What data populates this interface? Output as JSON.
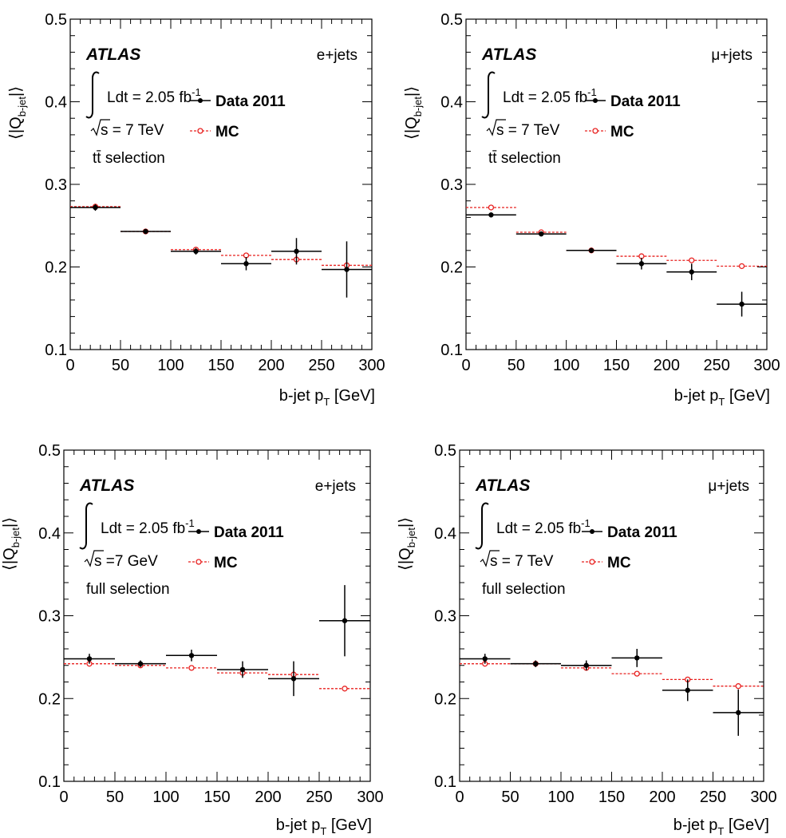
{
  "chart_data": [
    {
      "type": "scatter",
      "xlabel": "b-jet p",
      "xlabel_sub": "T",
      "xlabel_unit": " [GeV]",
      "ylabel": "⟨|Q",
      "ylabel_sub": "b-jet",
      "ylabel_end": "|⟩",
      "xlim": [
        0,
        300
      ],
      "ylim": [
        0.1,
        0.5
      ],
      "xticks": [
        "0",
        "50",
        "100",
        "150",
        "200",
        "250",
        "300"
      ],
      "yticks": [
        "0.1",
        "0.2",
        "0.3",
        "0.4",
        "0.5"
      ],
      "atlas": "ATLAS",
      "channel": "e+jets",
      "lumi": "Ldt = 2.05 fb",
      "lumi_sup": "-1",
      "energy": "s = 7 TeV",
      "selection": "tt̄ selection",
      "bins": [
        [
          0,
          50
        ],
        [
          50,
          100
        ],
        [
          100,
          150
        ],
        [
          150,
          200
        ],
        [
          200,
          250
        ],
        [
          250,
          300
        ]
      ],
      "series": [
        {
          "name": "Data 2011",
          "color": "#000000",
          "values": [
            0.272,
            0.243,
            0.219,
            0.204,
            0.219,
            0.197
          ],
          "errors": [
            0.004,
            0.003,
            0.004,
            0.008,
            0.016,
            0.034
          ]
        },
        {
          "name": "MC",
          "color": "#e8201f",
          "values": [
            0.273,
            0.243,
            0.221,
            0.214,
            0.209,
            0.202
          ]
        }
      ]
    },
    {
      "type": "scatter",
      "xlabel": "b-jet p",
      "xlabel_sub": "T",
      "xlabel_unit": " [GeV]",
      "ylabel": "⟨|Q",
      "ylabel_sub": "b-jet",
      "ylabel_end": "|⟩",
      "xlim": [
        0,
        300
      ],
      "ylim": [
        0.1,
        0.5
      ],
      "xticks": [
        "0",
        "50",
        "100",
        "150",
        "200",
        "250",
        "300"
      ],
      "yticks": [
        "0.1",
        "0.2",
        "0.3",
        "0.4",
        "0.5"
      ],
      "atlas": "ATLAS",
      "channel": "μ+jets",
      "lumi": "Ldt = 2.05 fb",
      "lumi_sup": "-1",
      "energy": "s = 7 TeV",
      "selection": "tt̄ selection",
      "bins": [
        [
          0,
          50
        ],
        [
          50,
          100
        ],
        [
          100,
          150
        ],
        [
          150,
          200
        ],
        [
          200,
          250
        ],
        [
          250,
          300
        ]
      ],
      "series": [
        {
          "name": "Data 2011",
          "color": "#000000",
          "values": [
            0.263,
            0.24,
            0.22,
            0.204,
            0.194,
            0.155
          ],
          "errors": [
            0.003,
            0.003,
            0.003,
            0.007,
            0.01,
            0.015
          ]
        },
        {
          "name": "MC",
          "color": "#e8201f",
          "values": [
            0.272,
            0.242,
            0.22,
            0.213,
            0.208,
            0.201
          ]
        }
      ]
    },
    {
      "type": "scatter",
      "xlabel": "b-jet p",
      "xlabel_sub": "T",
      "xlabel_unit": " [GeV]",
      "ylabel": "⟨|Q",
      "ylabel_sub": "b-jet",
      "ylabel_end": "|⟩",
      "xlim": [
        0,
        300
      ],
      "ylim": [
        0.1,
        0.5
      ],
      "xticks": [
        "0",
        "50",
        "100",
        "150",
        "200",
        "250",
        "300"
      ],
      "yticks": [
        "0.1",
        "0.2",
        "0.3",
        "0.4",
        "0.5"
      ],
      "atlas": "ATLAS",
      "channel": "e+jets",
      "lumi": "Ldt = 2.05 fb",
      "lumi_sup": "-1",
      "energy": "s =7 GeV",
      "selection": "full selection",
      "bins": [
        [
          0,
          50
        ],
        [
          50,
          100
        ],
        [
          100,
          150
        ],
        [
          150,
          200
        ],
        [
          200,
          250
        ],
        [
          250,
          300
        ]
      ],
      "series": [
        {
          "name": "Data 2011",
          "color": "#000000",
          "values": [
            0.248,
            0.242,
            0.252,
            0.235,
            0.224,
            0.294
          ],
          "errors": [
            0.006,
            0.004,
            0.007,
            0.01,
            0.021,
            0.043
          ]
        },
        {
          "name": "MC",
          "color": "#e8201f",
          "values": [
            0.242,
            0.24,
            0.237,
            0.231,
            0.229,
            0.212
          ]
        }
      ]
    },
    {
      "type": "scatter",
      "xlabel": "b-jet p",
      "xlabel_sub": "T",
      "xlabel_unit": " [GeV]",
      "ylabel": "⟨|Q",
      "ylabel_sub": "b-jet",
      "ylabel_end": "|⟩",
      "xlim": [
        0,
        300
      ],
      "ylim": [
        0.1,
        0.5
      ],
      "xticks": [
        "0",
        "50",
        "100",
        "150",
        "200",
        "250",
        "300"
      ],
      "yticks": [
        "0.1",
        "0.2",
        "0.3",
        "0.4",
        "0.5"
      ],
      "atlas": "ATLAS",
      "channel": "μ+jets",
      "lumi": "Ldt = 2.05 fb",
      "lumi_sup": "-1",
      "energy": "s = 7 TeV",
      "selection": "full selection",
      "bins": [
        [
          0,
          50
        ],
        [
          50,
          100
        ],
        [
          100,
          150
        ],
        [
          150,
          200
        ],
        [
          200,
          250
        ],
        [
          250,
          300
        ]
      ],
      "series": [
        {
          "name": "Data 2011",
          "color": "#000000",
          "values": [
            0.248,
            0.242,
            0.24,
            0.249,
            0.21,
            0.183
          ],
          "errors": [
            0.006,
            0.004,
            0.006,
            0.011,
            0.013,
            0.028
          ]
        },
        {
          "name": "MC",
          "color": "#e8201f",
          "values": [
            0.242,
            0.242,
            0.237,
            0.23,
            0.223,
            0.215
          ]
        }
      ]
    }
  ]
}
